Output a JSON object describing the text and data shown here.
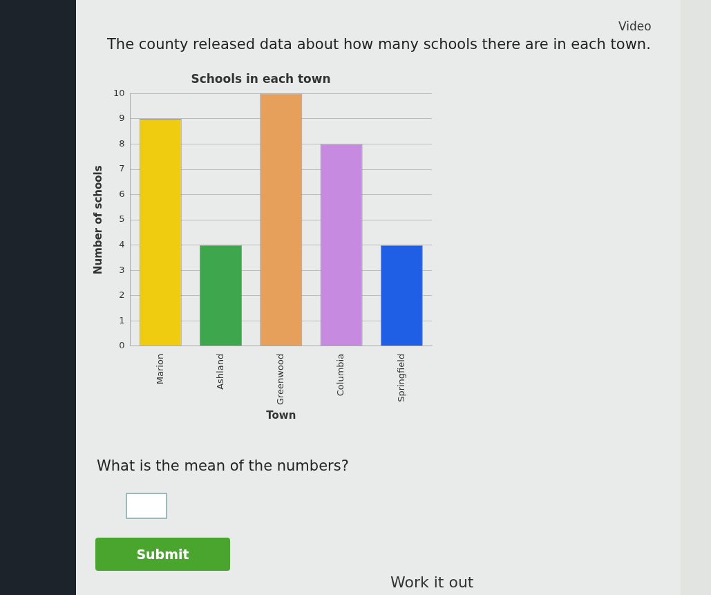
{
  "chart_data": {
    "type": "bar",
    "title": "Schools in each town",
    "xlabel": "Town",
    "ylabel": "Number of schools",
    "categories": [
      "Marion",
      "Ashland",
      "Greenwood",
      "Columbia",
      "Springfield"
    ],
    "values": [
      9,
      4,
      10,
      8,
      4
    ],
    "colors": [
      "#f0cc10",
      "#3ea64c",
      "#e6a05c",
      "#c68ae0",
      "#1f5fe6"
    ],
    "ylim": [
      0,
      10
    ],
    "yticks": [
      0,
      1,
      2,
      3,
      4,
      5,
      6,
      7,
      8,
      9,
      10
    ],
    "grid": "y",
    "legend": false,
    "annotations": [
      "Video",
      "The county released data about how many schools there are in each town.",
      "What is the mean of the numbers?",
      "Submit",
      "Work it out"
    ]
  }
}
